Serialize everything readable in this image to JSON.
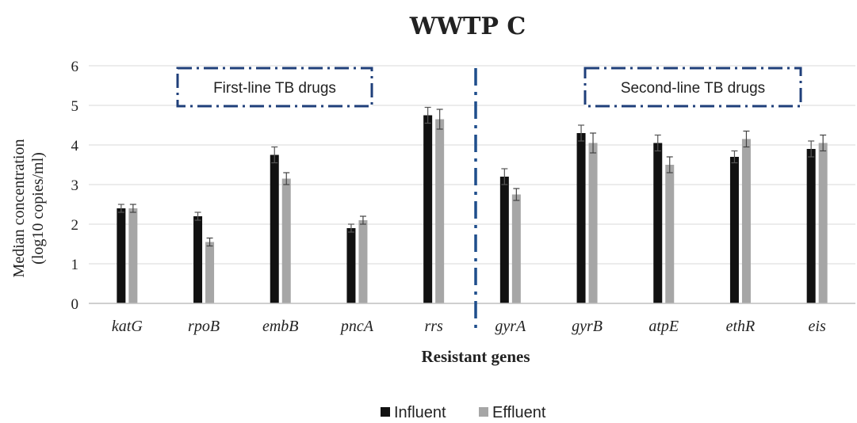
{
  "chart_data": {
    "type": "bar",
    "title": "WWTP C",
    "xlabel": "Resistant genes",
    "ylabel": [
      "Median concentration",
      "(log10 copies/ml)"
    ],
    "ylim": [
      0,
      6
    ],
    "yticks": [
      0,
      1,
      2,
      3,
      4,
      5,
      6
    ],
    "grid": true,
    "legend_position": "bottom",
    "categories": [
      "katG",
      "rpoB",
      "embB",
      "pncA",
      "rrs",
      "gyrA",
      "gyrB",
      "atpE",
      "ethR",
      "eis"
    ],
    "series": [
      {
        "name": "Influent",
        "color": "#111111",
        "values": [
          2.4,
          2.2,
          3.75,
          1.9,
          4.75,
          3.2,
          4.3,
          4.05,
          3.7,
          3.9
        ],
        "errors": [
          0.1,
          0.1,
          0.2,
          0.1,
          0.2,
          0.2,
          0.2,
          0.2,
          0.15,
          0.2
        ]
      },
      {
        "name": "Effluent",
        "color": "#a6a6a6",
        "values": [
          2.4,
          1.55,
          3.15,
          2.1,
          4.65,
          2.75,
          4.05,
          3.5,
          4.15,
          4.05
        ],
        "errors": [
          0.1,
          0.1,
          0.15,
          0.1,
          0.25,
          0.15,
          0.25,
          0.2,
          0.2,
          0.2
        ]
      }
    ],
    "annotations": [
      {
        "text": "First-line TB drugs",
        "group": "first"
      },
      {
        "text": "Second-line TB drugs",
        "group": "second"
      }
    ]
  }
}
